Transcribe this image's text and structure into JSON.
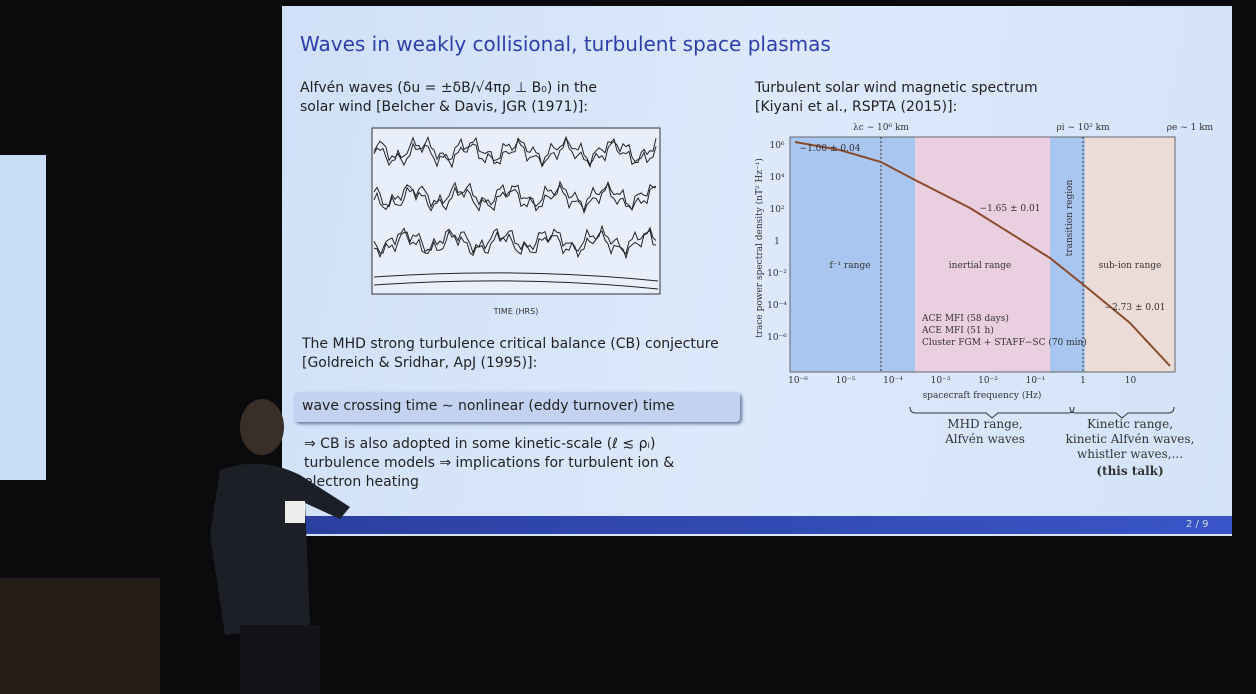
{
  "slide": {
    "title": "Waves in weakly collisional, turbulent space plasmas",
    "left": {
      "caption_line1": "Alfvén waves (δu = ±δB/√4πρ ⊥ B₀) in the",
      "caption_line2": "solar wind [Belcher & Davis, JGR (1971)]:",
      "figure_xlabel": "TIME (HRS)",
      "cb_line1": "The MHD strong turbulence critical balance (CB) conjecture",
      "cb_line2": "[Goldreich & Sridhar, ApJ (1995)]:",
      "box": "wave crossing time ∼ nonlinear (eddy turnover) time",
      "conclusion_line1": "⇒ CB is also adopted in some kinetic-scale (ℓ ≲ ρᵢ)",
      "conclusion_line2": "turbulence models ⇒ implications for turbulent ion &",
      "conclusion_line3": "electron heating"
    },
    "right": {
      "caption_line1": "Turbulent solar wind magnetic spectrum",
      "caption_line2": "[Kiyani et al., RSPTA (2015)]:",
      "scales": [
        "λc ∼ 10⁶ km",
        "ρi ∼ 10² km",
        "ρe ∼ 1 km"
      ],
      "ylabel": "trace power spectral density (nT² Hz⁻¹)",
      "xlabel": "spacecraft frequency (Hz)",
      "yticks": [
        "10⁶",
        "10⁴",
        "10²",
        "1",
        "10⁻²",
        "10⁻⁴",
        "10⁻⁶"
      ],
      "xticks": [
        "10⁻⁶",
        "10⁻⁵",
        "10⁻⁴",
        "10⁻³",
        "10⁻²",
        "10⁻¹",
        "1",
        "10"
      ],
      "regions": [
        "f⁻¹ range",
        "inertial range",
        "transition region",
        "sub-ion range"
      ],
      "slopes": [
        "−1.00 ± 0.04",
        "−1.65 ± 0.01",
        "−2.73 ± 0.01"
      ],
      "legend": [
        "ACE MFI (58 days)",
        "ACE MFI (51 h)",
        "Cluster FGM + STAFF−SC (70 min)"
      ],
      "mhd_line1": "MHD range,",
      "mhd_line2": "Alfvén waves",
      "kinetic_line1": "Kinetic range,",
      "kinetic_line2": "kinetic Alfvén waves,",
      "kinetic_line3": "whistler waves,...",
      "this_talk": "(this talk)"
    },
    "page_number": "2 / 9"
  }
}
